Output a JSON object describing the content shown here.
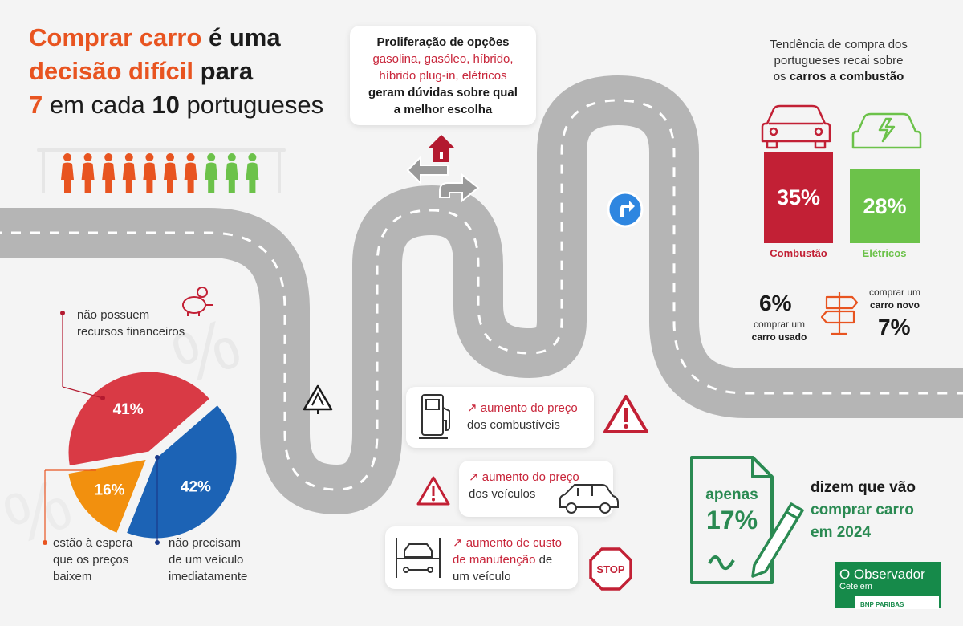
{
  "title": {
    "line1_hl": "Comprar carro",
    "line1_rest": " é uma",
    "line2_hl": "decisão difícil",
    "line2_rest": " para",
    "line3_num1": "7",
    "line3_mid": " em cada ",
    "line3_num2": "10",
    "line3_end": " portugueses"
  },
  "proliferation": {
    "head": "Proliferação de opções",
    "options1": "gasolina, gasóleo, híbrido,",
    "options2": "híbrido plug-in, elétricos",
    "tail1": "geram dúvidas sobre qual",
    "tail2": "a melhor escolha"
  },
  "trend": {
    "line1": "Tendência de compra dos",
    "line2": "portugueses recai sobre",
    "line3_pre": "os ",
    "line3_b": "carros a combustão"
  },
  "used_new": {
    "used_value": "6%",
    "used_l1": "comprar um",
    "used_l2": "carro usado",
    "new_l1": "comprar um",
    "new_l2": "carro novo",
    "new_value": "7%"
  },
  "causes": [
    {
      "hl": "aumento do preço",
      "rest1": "dos combustíveis",
      "rest2": ""
    },
    {
      "hl": "aumento do preço",
      "rest1": "dos veículos",
      "rest2": ""
    },
    {
      "hl": "aumento de custo",
      "hl2": "de manutenção",
      "rest1": " de",
      "rest2": "um veículo"
    }
  ],
  "stop_sign": "STOP",
  "pie_labels": {
    "red_l1": "não possuem",
    "red_l2": "recursos financeiros",
    "orange_l1": "estão à espera",
    "orange_l2": "que os preços",
    "orange_l3": "baixem",
    "blue_l1": "não precisam",
    "blue_l2": "de um veículo",
    "blue_l3": "imediatamente"
  },
  "intent": {
    "apenas": "apenas",
    "value": "17%",
    "l1": "dizem que vão",
    "l2": "comprar carro",
    "l3": "em 2024"
  },
  "brand": {
    "name": "O Observador",
    "sub": "Cetelem",
    "bnp": "BNP PARIBAS"
  },
  "colors": {
    "orange": "#e85420",
    "red": "#c22035",
    "green": "#6cc24a",
    "blue": "#1c63b5",
    "pie_red": "#d93a45",
    "pie_orange": "#f2900e",
    "dark_green": "#2a8a52"
  },
  "chart_data": [
    {
      "type": "pie",
      "title": "",
      "categories": [
        "não possuem recursos financeiros",
        "não precisam de um veículo imediatamente",
        "estão à espera que os preços baixem"
      ],
      "values": [
        41,
        42,
        16
      ],
      "labels": [
        "41%",
        "42%",
        "16%"
      ],
      "colors": [
        "#d93a45",
        "#1c63b5",
        "#f2900e"
      ]
    },
    {
      "type": "bar",
      "title": "",
      "categories": [
        "Combustão",
        "Elétricos"
      ],
      "values": [
        35,
        28
      ],
      "labels": [
        "35%",
        "28%"
      ],
      "colors": [
        "#c22035",
        "#6cc24a"
      ]
    },
    {
      "type": "bar",
      "title": "",
      "categories": [
        "7 em cada 10 portugueses"
      ],
      "values": [
        7
      ],
      "ylim": [
        0,
        10
      ],
      "colors": [
        "#e85420",
        "#6cc24a"
      ]
    }
  ]
}
